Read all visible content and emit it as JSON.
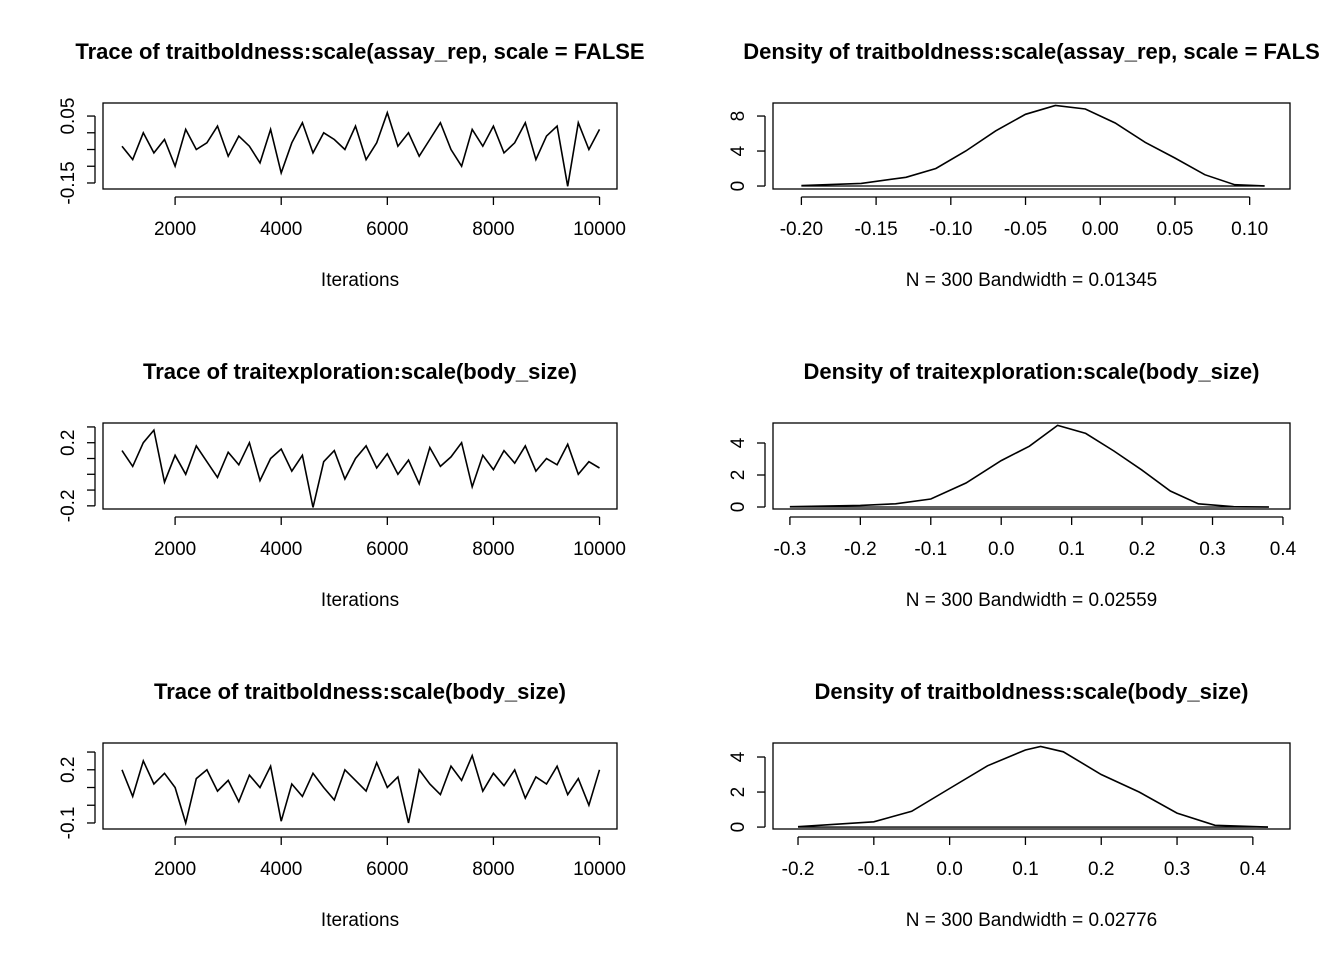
{
  "chart_data": [
    {
      "type": "line",
      "title": "Trace of traitboldness:scale(assay_rep, scale = FALSE",
      "x_label": "Iterations",
      "color": "#000000",
      "x": [
        1000,
        1200,
        1400,
        1600,
        1800,
        2000,
        2200,
        2400,
        2600,
        2800,
        3000,
        3200,
        3400,
        3600,
        3800,
        4000,
        4200,
        4400,
        4600,
        4800,
        5000,
        5200,
        5400,
        5600,
        5800,
        6000,
        6200,
        6400,
        6600,
        6800,
        7000,
        7200,
        7400,
        7600,
        7800,
        8000,
        8200,
        8400,
        8600,
        8800,
        9000,
        9200,
        9400,
        9600,
        9800,
        10000
      ],
      "values": [
        -0.04,
        -0.08,
        0.0,
        -0.06,
        -0.02,
        -0.1,
        0.01,
        -0.05,
        -0.03,
        0.02,
        -0.07,
        -0.01,
        -0.04,
        -0.09,
        0.01,
        -0.12,
        -0.03,
        0.03,
        -0.06,
        0.0,
        -0.02,
        -0.05,
        0.02,
        -0.08,
        -0.03,
        0.06,
        -0.04,
        0.0,
        -0.07,
        -0.02,
        0.03,
        -0.05,
        -0.1,
        0.01,
        -0.04,
        0.02,
        -0.06,
        -0.03,
        0.03,
        -0.08,
        -0.01,
        0.02,
        -0.16,
        0.03,
        -0.05,
        0.01
      ],
      "xlim": [
        641,
        10329
      ],
      "xticks": [
        2000,
        4000,
        6000,
        8000,
        10000
      ],
      "ylim": [
        -0.168,
        0.089
      ],
      "yticks": [
        -0.15,
        {
          "value": -0.1,
          "label": null
        },
        {
          "value": -0.05,
          "label": null
        },
        {
          "value": 0,
          "label": null
        },
        0.05
      ]
    },
    {
      "type": "density",
      "title": "Density of traitboldness:scale(assay_rep, scale = FALS",
      "x_label": "N = 300   Bandwidth = 0.01345",
      "color": "#000000",
      "x": [
        -0.2,
        -0.16,
        -0.13,
        -0.11,
        -0.09,
        -0.07,
        -0.05,
        -0.03,
        -0.01,
        0.01,
        0.03,
        0.05,
        0.07,
        0.09,
        0.11
      ],
      "values": [
        0.05,
        0.3,
        1.0,
        2.0,
        4.0,
        6.3,
        8.2,
        9.2,
        8.8,
        7.2,
        5.0,
        3.2,
        1.3,
        0.15,
        0.02
      ],
      "xlim": [
        -0.219,
        0.127
      ],
      "xticks": [
        {
          "value": -0.2,
          "label": "-0.20"
        },
        {
          "value": -0.15,
          "label": "-0.15"
        },
        {
          "value": -0.1,
          "label": "-0.10"
        },
        {
          "value": -0.05,
          "label": "-0.05"
        },
        {
          "value": 0,
          "label": "0.00"
        },
        {
          "value": 0.05,
          "label": "0.05"
        },
        {
          "value": 0.1,
          "label": "0.10"
        }
      ],
      "ylim": [
        -0.34,
        9.49
      ],
      "yticks": [
        0,
        4,
        8
      ]
    },
    {
      "type": "line",
      "title": "Trace of traitexploration:scale(body_size)",
      "x_label": "Iterations",
      "color": "#000000",
      "x": [
        1000,
        1200,
        1400,
        1600,
        1800,
        2000,
        2200,
        2400,
        2600,
        2800,
        3000,
        3200,
        3400,
        3600,
        3800,
        4000,
        4200,
        4400,
        4600,
        4800,
        5000,
        5200,
        5400,
        5600,
        5800,
        6000,
        6200,
        6400,
        6600,
        6800,
        7000,
        7200,
        7400,
        7600,
        7800,
        8000,
        8200,
        8400,
        8600,
        8800,
        9000,
        9200,
        9400,
        9600,
        9800,
        10000
      ],
      "values": [
        0.15,
        0.05,
        0.2,
        0.28,
        -0.05,
        0.12,
        0.0,
        0.18,
        0.08,
        -0.02,
        0.14,
        0.06,
        0.2,
        -0.04,
        0.1,
        0.16,
        0.02,
        0.12,
        -0.21,
        0.08,
        0.15,
        -0.03,
        0.1,
        0.18,
        0.04,
        0.13,
        0.0,
        0.09,
        -0.06,
        0.17,
        0.05,
        0.11,
        0.2,
        -0.08,
        0.12,
        0.03,
        0.15,
        0.07,
        0.18,
        0.02,
        0.1,
        0.06,
        0.19,
        0.0,
        0.08,
        0.04
      ],
      "xlim": [
        641,
        10329
      ],
      "xticks": [
        2000,
        4000,
        6000,
        8000,
        10000
      ],
      "ylim": [
        -0.22,
        0.325
      ],
      "yticks": [
        -0.2,
        {
          "value": -0.1,
          "label": null
        },
        {
          "value": 0,
          "label": null
        },
        {
          "value": 0.1,
          "label": null
        },
        0.2,
        {
          "value": 0.3,
          "label": null
        }
      ]
    },
    {
      "type": "density",
      "title": "Density of traitexploration:scale(body_size)",
      "x_label": "N = 300   Bandwidth = 0.02559",
      "color": "#000000",
      "x": [
        -0.3,
        -0.2,
        -0.15,
        -0.1,
        -0.05,
        0.0,
        0.04,
        0.08,
        0.12,
        0.16,
        0.2,
        0.24,
        0.28,
        0.33,
        0.38
      ],
      "values": [
        0.02,
        0.1,
        0.2,
        0.5,
        1.5,
        2.9,
        3.8,
        5.1,
        4.6,
        3.5,
        2.3,
        1.0,
        0.2,
        0.02,
        0.0
      ],
      "xlim": [
        -0.324,
        0.41
      ],
      "xticks": [
        -0.3,
        -0.2,
        -0.1,
        {
          "value": 0,
          "label": "0.0"
        },
        0.1,
        0.2,
        0.3,
        0.4
      ],
      "ylim": [
        -0.125,
        5.25
      ],
      "yticks": [
        0,
        2,
        4
      ]
    },
    {
      "type": "line",
      "title": "Trace of traitboldness:scale(body_size)",
      "x_label": "Iterations",
      "color": "#000000",
      "x": [
        1000,
        1200,
        1400,
        1600,
        1800,
        2000,
        2200,
        2400,
        2600,
        2800,
        3000,
        3200,
        3400,
        3600,
        3800,
        4000,
        4200,
        4400,
        4600,
        4800,
        5000,
        5200,
        5400,
        5600,
        5800,
        6000,
        6200,
        6400,
        6600,
        6800,
        7000,
        7200,
        7400,
        7600,
        7800,
        8000,
        8200,
        8400,
        8600,
        8800,
        9000,
        9200,
        9400,
        9600,
        9800,
        10000
      ],
      "values": [
        0.2,
        0.05,
        0.25,
        0.12,
        0.18,
        0.1,
        -0.1,
        0.15,
        0.2,
        0.08,
        0.14,
        0.02,
        0.17,
        0.1,
        0.22,
        -0.09,
        0.12,
        0.05,
        0.18,
        0.1,
        0.03,
        0.2,
        0.14,
        0.08,
        0.24,
        0.1,
        0.16,
        -0.1,
        0.2,
        0.12,
        0.06,
        0.22,
        0.14,
        0.28,
        0.08,
        0.18,
        0.11,
        0.2,
        0.04,
        0.16,
        0.12,
        0.22,
        0.06,
        0.15,
        0.0,
        0.2
      ],
      "xlim": [
        641,
        10329
      ],
      "xticks": [
        2000,
        4000,
        6000,
        8000,
        10000
      ],
      "ylim": [
        -0.134,
        0.351
      ],
      "yticks": [
        -0.1,
        {
          "value": 0,
          "label": null
        },
        {
          "value": 0.1,
          "label": null
        },
        0.2,
        {
          "value": 0.3,
          "label": null
        }
      ]
    },
    {
      "type": "density",
      "title": "Density of traitboldness:scale(body_size)",
      "x_label": "N = 300   Bandwidth = 0.02776",
      "color": "#000000",
      "x": [
        -0.2,
        -0.1,
        -0.05,
        0.0,
        0.05,
        0.1,
        0.12,
        0.15,
        0.2,
        0.25,
        0.3,
        0.35,
        0.42
      ],
      "values": [
        0.02,
        0.3,
        0.9,
        2.2,
        3.5,
        4.4,
        4.6,
        4.3,
        3.0,
        2.0,
        0.8,
        0.1,
        0.0
      ],
      "xlim": [
        -0.233,
        0.449
      ],
      "xticks": [
        -0.2,
        -0.1,
        {
          "value": 0,
          "label": "0.0"
        },
        0.1,
        0.2,
        0.3,
        0.4
      ],
      "ylim": [
        -0.11,
        4.8
      ],
      "yticks": [
        0,
        2,
        4
      ]
    }
  ]
}
